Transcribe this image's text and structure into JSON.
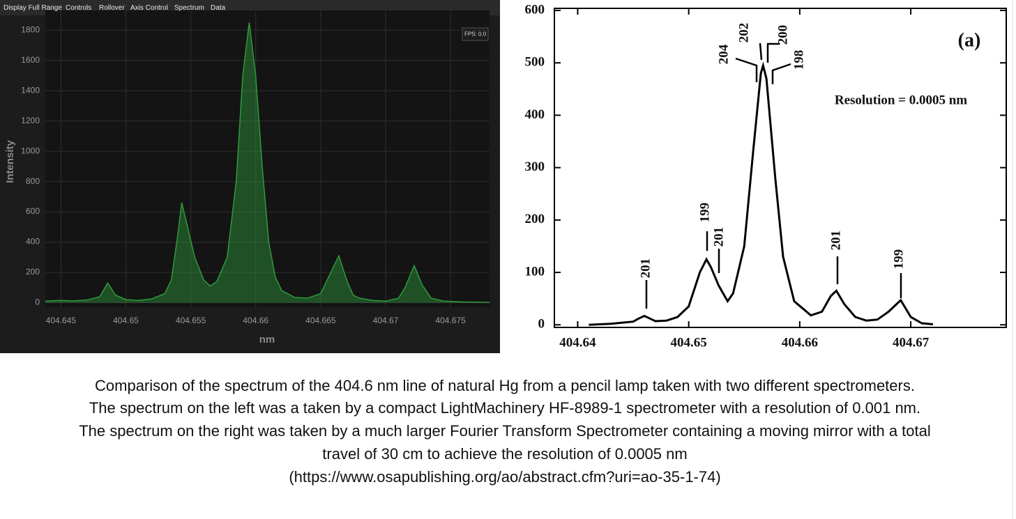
{
  "menu": [
    "Display Full Range",
    "Controls",
    "Rollover",
    "Axis Control",
    "Spectrum",
    "Data"
  ],
  "fps_label": "FPS: 0.0",
  "chart_data": [
    {
      "type": "area",
      "x_label": "nm",
      "y_label": "Intensity",
      "x": [
        404.6438,
        404.645,
        404.646,
        404.647,
        404.648,
        404.6486,
        404.6492,
        404.65,
        404.651,
        404.652,
        404.653,
        404.6535,
        404.654,
        404.6543,
        404.6547,
        404.6553,
        404.656,
        404.6565,
        404.657,
        404.6578,
        404.6585,
        404.659,
        404.6595,
        404.66,
        404.6605,
        404.661,
        404.6615,
        404.662,
        404.663,
        404.664,
        404.665,
        404.6655,
        404.6664,
        404.667,
        404.6675,
        404.668,
        404.669,
        404.67,
        404.671,
        404.6715,
        404.6722,
        404.6728,
        404.6735,
        404.6745,
        404.676,
        404.678
      ],
      "values": [
        10,
        15,
        12,
        18,
        40,
        130,
        50,
        20,
        15,
        25,
        60,
        150,
        450,
        660,
        520,
        300,
        150,
        110,
        140,
        300,
        800,
        1500,
        1850,
        1500,
        900,
        400,
        170,
        80,
        35,
        30,
        60,
        150,
        310,
        150,
        50,
        30,
        15,
        10,
        30,
        100,
        245,
        120,
        30,
        10,
        5,
        2
      ],
      "color": "#2f9a3c",
      "xlim": [
        404.6438,
        404.678
      ],
      "ylim": [
        -30,
        1930
      ],
      "xticks": [
        404.645,
        404.65,
        404.655,
        404.66,
        404.665,
        404.67,
        404.675
      ],
      "yticks": [
        0,
        200,
        400,
        600,
        800,
        1000,
        1200,
        1400,
        1600,
        1800
      ],
      "grid": true
    },
    {
      "type": "line",
      "annotations": [
        "(a)",
        "Resolution = 0.0005 nm",
        "201",
        "199",
        "201",
        "201",
        "199",
        "204",
        "202",
        "200",
        "198"
      ],
      "x": [
        404.641,
        404.643,
        404.645,
        404.6455,
        404.646,
        404.6465,
        404.647,
        404.648,
        404.649,
        404.65,
        404.651,
        404.6516,
        404.652,
        404.6527,
        404.6535,
        404.654,
        404.655,
        404.6558,
        404.6565,
        404.6567,
        404.657,
        404.6578,
        404.6585,
        404.6595,
        404.661,
        404.662,
        404.6628,
        404.6633,
        404.664,
        404.665,
        404.666,
        404.667,
        404.668,
        404.6691,
        404.67,
        404.671,
        404.672
      ],
      "values": [
        0,
        2,
        6,
        12,
        17,
        12,
        7,
        8,
        15,
        35,
        100,
        125,
        110,
        75,
        45,
        60,
        150,
        330,
        480,
        495,
        470,
        280,
        130,
        45,
        18,
        25,
        55,
        65,
        40,
        15,
        8,
        10,
        25,
        47,
        15,
        3,
        1
      ],
      "color": "#000000",
      "xlim": [
        404.6379,
        404.6786
      ],
      "ylim": [
        -5,
        604
      ],
      "xticks": [
        404.64,
        404.65,
        404.66,
        404.67
      ],
      "yticks": [
        0,
        100,
        200,
        300,
        400,
        500,
        600
      ],
      "grid": false
    }
  ],
  "caption": [
    "Comparison of the spectrum of the 404.6 nm line of natural Hg from a pencil lamp taken with two different spectrometers.",
    "The spectrum on the left was a taken by a compact LightMachinery HF-8989-1 spectrometer with a resolution of 0.001 nm.",
    "The spectrum on the right was taken by a much larger Fourier Transform Spectrometer containing a moving mirror with a total",
    "travel of 30 cm to achieve the resolution of 0.0005 nm",
    "(https://www.osapublishing.org/ao/abstract.cfm?uri=ao-35-1-74)"
  ]
}
